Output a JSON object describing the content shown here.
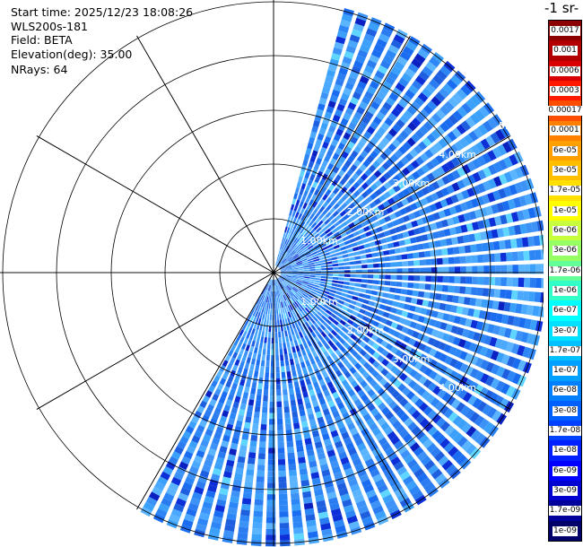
{
  "info": {
    "start_time": "Start time: 2025/12/23 18:08:26",
    "instrument": "WLS200s-181",
    "field": "Field: BETA",
    "elevation": "Elevation(deg): 35.00",
    "nrays": "NRays: 64"
  },
  "chart_data": {
    "type": "ppi",
    "sector_deg": [
      -15,
      180
    ],
    "range_rings_km": [
      {
        "r": 1,
        "upper_label": "1.00km",
        "lower_label": "1.00km"
      },
      {
        "r": 2,
        "upper_label": "2.00km",
        "lower_label": "2.00km"
      },
      {
        "r": 3,
        "upper_label": "3.00km",
        "lower_label": "3.00km"
      },
      {
        "r": 4,
        "upper_label": "4.00km",
        "lower_label": "4.00km"
      },
      {
        "r": 5,
        "upper_label": "5.",
        "lower_label": ""
      }
    ],
    "radial_lines": 12,
    "colorbar": {
      "title": "-1 sr-",
      "labels": [
        "0.0017",
        "0.001",
        "0.0006",
        "0.0003",
        "0.00017",
        "0.0001",
        "6e-05",
        "3e-05",
        "1.7e-05",
        "1e-05",
        "6e-06",
        "3e-06",
        "1.7e-06",
        "1e-06",
        "6e-07",
        "3e-07",
        "1.7e-07",
        "1e-07",
        "6e-08",
        "3e-08",
        "1.7e-08",
        "1e-08",
        "6e-09",
        "3e-09",
        "1.7e-09",
        "1e-09"
      ],
      "colors": [
        "#8b0000",
        "#b20000",
        "#d80000",
        "#ff1a00",
        "#ff4d00",
        "#ff8000",
        "#ffa000",
        "#ffbf00",
        "#ffe000",
        "#ffff00",
        "#c8ff3c",
        "#96ff64",
        "#64ff96",
        "#32ffc8",
        "#00ffff",
        "#00e0ff",
        "#00c0ff",
        "#00a0ff",
        "#0080ff",
        "#0060ff",
        "#0040ff",
        "#0020ff",
        "#0000ff",
        "#0000d0",
        "#00009a",
        "#000068"
      ]
    }
  }
}
